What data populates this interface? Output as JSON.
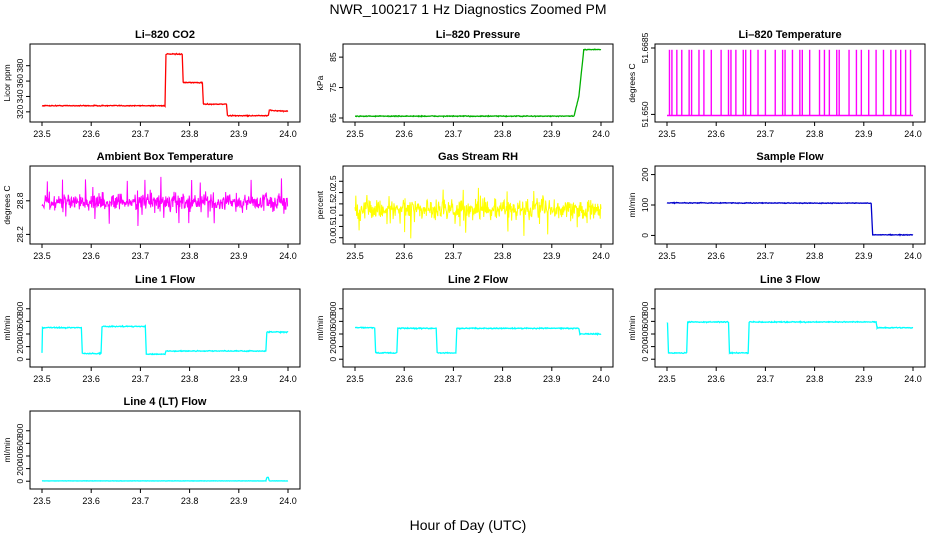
{
  "figure": {
    "title": "NWR_100217  1 Hz Diagnostics Zoomed PM",
    "xlabel": "Hour of Day (UTC)"
  },
  "chart_data": [
    {
      "type": "line",
      "title": "Li–820 CO2",
      "ylabel": "Licor ppm",
      "xlim": [
        23.5,
        24.0
      ],
      "ylim": [
        312,
        403
      ],
      "xticks": [
        23.5,
        23.6,
        23.7,
        23.8,
        23.9,
        24.0
      ],
      "xtick_labels": [
        "23.5",
        "23.6",
        "23.7",
        "23.8",
        "23.9",
        "24.0"
      ],
      "yticks": [
        320,
        340,
        360,
        380
      ],
      "ytick_labels": [
        "320",
        "340",
        "360",
        "380"
      ],
      "color": "#ff0000",
      "noise": 0.6,
      "series": [
        {
          "x": [
            23.5,
            23.75,
            23.752,
            23.785,
            23.787,
            23.826,
            23.828,
            23.875,
            23.877,
            23.96,
            23.962,
            23.99,
            24.0
          ],
          "y": [
            328,
            328,
            395,
            395,
            358,
            358,
            330,
            330,
            315,
            315,
            322,
            321,
            321
          ]
        }
      ]
    },
    {
      "type": "line",
      "title": "Li–820 Pressure",
      "ylabel": "kPa",
      "xlim": [
        23.5,
        24.0
      ],
      "ylim": [
        65,
        88
      ],
      "xticks": [
        23.5,
        23.6,
        23.7,
        23.8,
        23.9,
        24.0
      ],
      "xtick_labels": [
        "23.5",
        "23.6",
        "23.7",
        "23.8",
        "23.9",
        "24.0"
      ],
      "yticks": [
        65,
        75,
        85
      ],
      "ytick_labels": [
        "65",
        "75",
        "85"
      ],
      "color": "#00b000",
      "noise": 0.15,
      "series": [
        {
          "x": [
            23.5,
            23.945,
            23.955,
            23.965,
            24.0
          ],
          "y": [
            65.6,
            65.6,
            72,
            87.5,
            87.5
          ]
        }
      ]
    },
    {
      "type": "spikes",
      "title": "Li–820 Temperature",
      "ylabel": "degrees C",
      "xlim": [
        23.5,
        24.0
      ],
      "ylim": [
        51.649,
        51.6685
      ],
      "xticks": [
        23.5,
        23.6,
        23.7,
        23.8,
        23.9,
        24.0
      ],
      "xtick_labels": [
        "23.5",
        "23.6",
        "23.7",
        "23.8",
        "23.9",
        "24.0"
      ],
      "yticks": [
        51.65,
        51.6685
      ],
      "ytick_labels": [
        "51.650",
        "51.6685"
      ],
      "color": "#ff00ff",
      "low": 51.6497,
      "high": 51.668,
      "spike_x": [
        23.505,
        23.51,
        23.52,
        23.53,
        23.545,
        23.55,
        23.565,
        23.575,
        23.59,
        23.61,
        23.625,
        23.63,
        23.64,
        23.655,
        23.66,
        23.67,
        23.685,
        23.7,
        23.72,
        23.735,
        23.74,
        23.755,
        23.77,
        23.775,
        23.79,
        23.81,
        23.82,
        23.83,
        23.845,
        23.85,
        23.87,
        23.885,
        23.895,
        23.91,
        23.925,
        23.94,
        23.955,
        23.965,
        23.975,
        23.985,
        23.995
      ]
    },
    {
      "type": "noise",
      "title": "Ambient Box Temperature",
      "ylabel": "degrees C",
      "xlim": [
        23.5,
        24.0
      ],
      "ylim": [
        28.1,
        29.35
      ],
      "xticks": [
        23.5,
        23.6,
        23.7,
        23.8,
        23.9,
        24.0
      ],
      "xtick_labels": [
        "23.5",
        "23.6",
        "23.7",
        "23.8",
        "23.9",
        "24.0"
      ],
      "yticks": [
        28.2,
        28.8
      ],
      "ytick_labels": [
        "28.2",
        "28.8"
      ],
      "color": "#ff00ff",
      "mean": 28.78,
      "spread": 0.45
    },
    {
      "type": "noise",
      "title": "Gas Stream RH",
      "ylabel": "percent",
      "xlim": [
        23.5,
        24.0
      ],
      "ylim": [
        -0.1,
        3.0
      ],
      "xticks": [
        23.5,
        23.6,
        23.7,
        23.8,
        23.9,
        24.0
      ],
      "xtick_labels": [
        "23.5",
        "23.6",
        "23.7",
        "23.8",
        "23.9",
        "24.0"
      ],
      "yticks": [
        0.0,
        0.5,
        1.0,
        1.5,
        2.0,
        2.5
      ],
      "ytick_labels": [
        "0.0",
        "0.5",
        "1.0",
        "1.5",
        "2.0",
        "2.5"
      ],
      "color": "#ffff00",
      "mean": 1.25,
      "spread": 1.3
    },
    {
      "type": "line",
      "title": "Sample Flow",
      "ylabel": "ml/min",
      "xlim": [
        23.5,
        24.0
      ],
      "ylim": [
        -15,
        215
      ],
      "xticks": [
        23.5,
        23.6,
        23.7,
        23.8,
        23.9,
        24.0
      ],
      "xtick_labels": [
        "23.5",
        "23.6",
        "23.7",
        "23.8",
        "23.9",
        "24.0"
      ],
      "yticks": [
        0,
        100,
        200
      ],
      "ytick_labels": [
        "0",
        "100",
        "200"
      ],
      "color": "#0000cc",
      "noise": 1.2,
      "series": [
        {
          "x": [
            23.5,
            23.915,
            23.918,
            24.0
          ],
          "y": [
            107,
            106,
            2,
            2
          ]
        }
      ]
    },
    {
      "type": "line",
      "title": "Line 1 Flow",
      "ylabel": "ml/min",
      "xlim": [
        23.5,
        24.0
      ],
      "ylim": [
        -60,
        1050
      ],
      "xticks": [
        23.5,
        23.6,
        23.7,
        23.8,
        23.9,
        24.0
      ],
      "xtick_labels": [
        "23.5",
        "23.6",
        "23.7",
        "23.8",
        "23.9",
        "24.0"
      ],
      "yticks": [
        0,
        200,
        400,
        600,
        800
      ],
      "ytick_labels": [
        "0",
        "200",
        "400",
        "600",
        "800"
      ],
      "color": "#00ffff",
      "noise": 8,
      "series": [
        {
          "x": [
            23.5,
            23.501,
            23.503,
            23.58,
            23.582,
            23.62,
            23.622,
            23.71,
            23.712,
            23.75,
            23.752,
            23.955,
            23.957,
            24.0
          ],
          "y": [
            100,
            500,
            500,
            500,
            90,
            90,
            520,
            520,
            80,
            80,
            130,
            130,
            430,
            430
          ]
        }
      ]
    },
    {
      "type": "line",
      "title": "Line 2 Flow",
      "ylabel": "ml/min",
      "xlim": [
        23.5,
        24.0
      ],
      "ylim": [
        -60,
        1050
      ],
      "xticks": [
        23.5,
        23.6,
        23.7,
        23.8,
        23.9,
        24.0
      ],
      "xtick_labels": [
        "23.5",
        "23.6",
        "23.7",
        "23.8",
        "23.9",
        "24.0"
      ],
      "yticks": [
        0,
        200,
        400,
        600,
        800
      ],
      "ytick_labels": [
        "0",
        "200",
        "400",
        "600",
        "800"
      ],
      "color": "#00ffff",
      "noise": 8,
      "series": [
        {
          "x": [
            23.5,
            23.54,
            23.542,
            23.585,
            23.587,
            23.665,
            23.667,
            23.705,
            23.707,
            23.955,
            23.957,
            24.0
          ],
          "y": [
            500,
            500,
            100,
            100,
            490,
            490,
            100,
            100,
            490,
            490,
            400,
            400
          ]
        }
      ]
    },
    {
      "type": "line",
      "title": "Line 3 Flow",
      "ylabel": "ml/min",
      "xlim": [
        23.5,
        24.0
      ],
      "ylim": [
        -60,
        1050
      ],
      "xticks": [
        23.5,
        23.6,
        23.7,
        23.8,
        23.9,
        24.0
      ],
      "xtick_labels": [
        "23.5",
        "23.6",
        "23.7",
        "23.8",
        "23.9",
        "24.0"
      ],
      "yticks": [
        0,
        200,
        400,
        600,
        800
      ],
      "ytick_labels": [
        "0",
        "200",
        "400",
        "600",
        "800"
      ],
      "color": "#00ffff",
      "noise": 8,
      "series": [
        {
          "x": [
            23.5,
            23.501,
            23.503,
            23.54,
            23.542,
            23.625,
            23.627,
            23.665,
            23.667,
            23.925,
            23.927,
            24.0
          ],
          "y": [
            580,
            580,
            100,
            100,
            590,
            590,
            100,
            100,
            590,
            590,
            500,
            500
          ]
        }
      ]
    },
    {
      "type": "line",
      "title": "Line 4 (LT) Flow",
      "ylabel": "ml/min",
      "xlim": [
        23.5,
        24.0
      ],
      "ylim": [
        -60,
        1050
      ],
      "xticks": [
        23.5,
        23.6,
        23.7,
        23.8,
        23.9,
        24.0
      ],
      "xtick_labels": [
        "23.5",
        "23.6",
        "23.7",
        "23.8",
        "23.9",
        "24.0"
      ],
      "yticks": [
        0,
        200,
        400,
        600,
        800
      ],
      "ytick_labels": [
        "0",
        "200",
        "400",
        "600",
        "800"
      ],
      "color": "#00ffff",
      "noise": 2,
      "series": [
        {
          "x": [
            23.5,
            23.955,
            23.957,
            23.96,
            23.962,
            24.0
          ],
          "y": [
            5,
            5,
            60,
            60,
            5,
            5
          ]
        }
      ]
    }
  ]
}
